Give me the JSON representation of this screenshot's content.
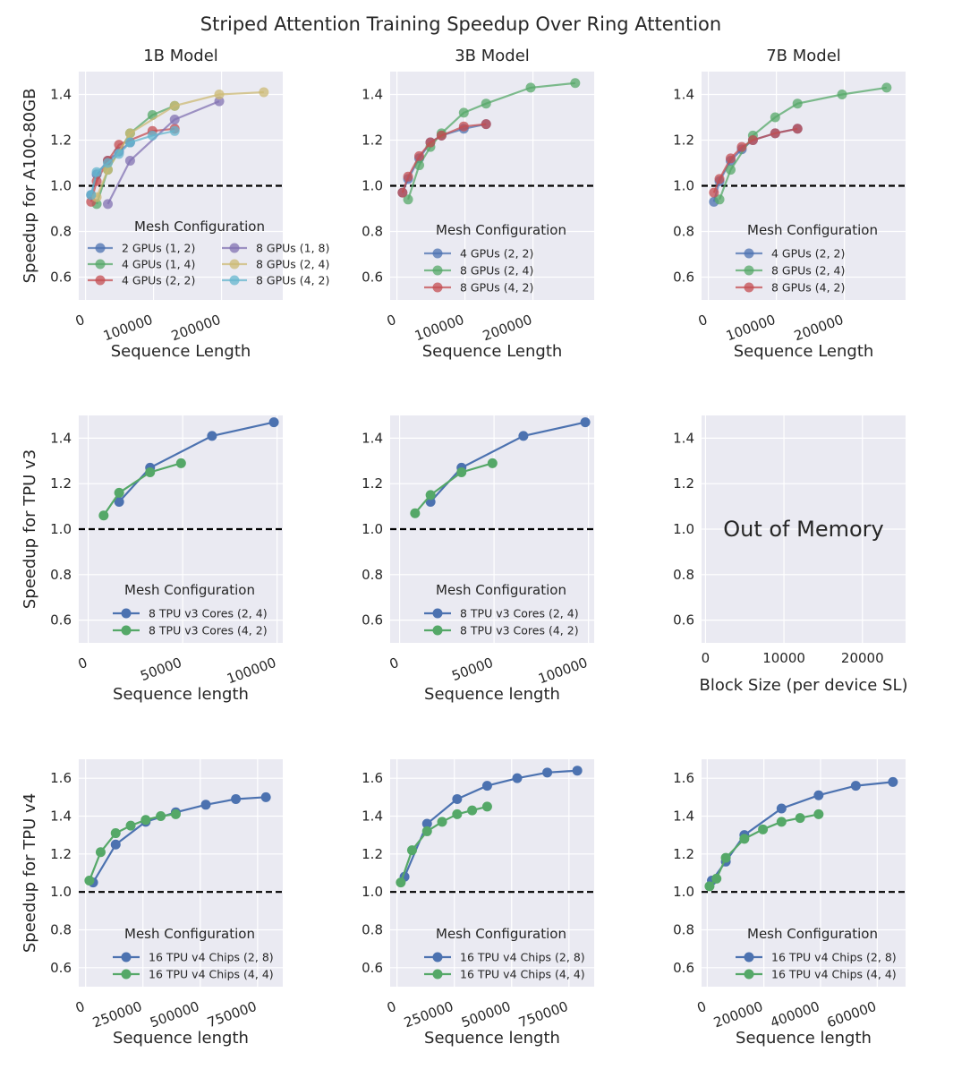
{
  "figure_title": "Striped Attention Training Speedup Over Ring Attention",
  "colors": {
    "blue": "#4c72b0",
    "green": "#55a868",
    "red": "#c44e52",
    "purple": "#8172b2",
    "gold": "#ccb974",
    "cyan": "#64b5cd",
    "baseline": "#000000",
    "background": "#eaeaf2"
  },
  "chart_data": [
    {
      "id": "1b-a100",
      "type": "line",
      "title": "1B Model",
      "ylabel": "Speedup for A100-80GB",
      "xlabel": "Sequence Length",
      "xlim": [
        -10000,
        290000
      ],
      "ylim": [
        0.5,
        1.5
      ],
      "xticks": [
        0,
        100000,
        200000
      ],
      "xtick_labels": [
        "0",
        "100000",
        "200000"
      ],
      "yticks": [
        0.6,
        0.8,
        1.0,
        1.2,
        1.4
      ],
      "ytick_labels": [
        "0.6",
        "0.8",
        "1.0",
        "1.2",
        "1.4"
      ],
      "baseline": 1.0,
      "alpha": 0.75,
      "legend": {
        "title": "Mesh Configuration",
        "position": "lower-right",
        "columns": 2
      },
      "series": [
        {
          "name": "2 GPUs (1, 2)",
          "color": "blue",
          "x": [
            8192,
            16384,
            32768,
            49152,
            65536
          ],
          "y": [
            0.96,
            1.05,
            1.11,
            1.15,
            1.19
          ]
        },
        {
          "name": "4 GPUs (1, 4)",
          "color": "green",
          "x": [
            16384,
            32768,
            65536,
            98304,
            131072
          ],
          "y": [
            0.92,
            1.07,
            1.23,
            1.31,
            1.35
          ]
        },
        {
          "name": "4 GPUs (2, 2)",
          "color": "red",
          "x": [
            8192,
            16384,
            32768,
            49152,
            98304,
            131072
          ],
          "y": [
            0.93,
            1.02,
            1.11,
            1.18,
            1.24,
            1.25
          ]
        },
        {
          "name": "8 GPUs (1, 8)",
          "color": "purple",
          "x": [
            32768,
            65536,
            131072,
            196608
          ],
          "y": [
            0.92,
            1.11,
            1.29,
            1.37
          ]
        },
        {
          "name": "8 GPUs (2, 4)",
          "color": "gold",
          "x": [
            16384,
            32768,
            65536,
            131072,
            196608,
            262144
          ],
          "y": [
            0.95,
            1.07,
            1.23,
            1.35,
            1.4,
            1.41
          ]
        },
        {
          "name": "8 GPUs (4, 2)",
          "color": "cyan",
          "x": [
            8192,
            16384,
            32768,
            49152,
            65536,
            98304,
            131072
          ],
          "y": [
            0.96,
            1.06,
            1.1,
            1.14,
            1.19,
            1.22,
            1.24
          ]
        }
      ]
    },
    {
      "id": "3b-a100",
      "type": "line",
      "title": "3B Model",
      "ylabel": "",
      "xlabel": "Sequence Length",
      "xlim": [
        -10000,
        290000
      ],
      "ylim": [
        0.5,
        1.5
      ],
      "xticks": [
        0,
        100000,
        200000
      ],
      "xtick_labels": [
        "0",
        "100000",
        "200000"
      ],
      "yticks": [
        0.6,
        0.8,
        1.0,
        1.2,
        1.4
      ],
      "ytick_labels": [
        "0.6",
        "0.8",
        "1.0",
        "1.2",
        "1.4"
      ],
      "baseline": 1.0,
      "alpha": 0.75,
      "legend": {
        "title": "Mesh Configuration",
        "position": "lower-right",
        "columns": 1
      },
      "series": [
        {
          "name": "4 GPUs (2, 2)",
          "color": "blue",
          "x": [
            8192,
            16384,
            32768,
            49152,
            65536,
            98304,
            131072
          ],
          "y": [
            0.97,
            1.03,
            1.12,
            1.19,
            1.22,
            1.25,
            1.27
          ]
        },
        {
          "name": "8 GPUs (2, 4)",
          "color": "green",
          "x": [
            16384,
            32768,
            49152,
            65536,
            98304,
            131072,
            196608,
            262144
          ],
          "y": [
            0.94,
            1.09,
            1.17,
            1.23,
            1.32,
            1.36,
            1.43,
            1.45
          ]
        },
        {
          "name": "8 GPUs (4, 2)",
          "color": "red",
          "x": [
            8192,
            16384,
            32768,
            49152,
            65536,
            98304,
            131072
          ],
          "y": [
            0.97,
            1.04,
            1.13,
            1.19,
            1.22,
            1.26,
            1.27
          ]
        }
      ]
    },
    {
      "id": "7b-a100",
      "type": "line",
      "title": "7B Model",
      "ylabel": "",
      "xlabel": "Sequence Length",
      "xlim": [
        -10000,
        290000
      ],
      "ylim": [
        0.5,
        1.5
      ],
      "xticks": [
        0,
        100000,
        200000
      ],
      "xtick_labels": [
        "0",
        "100000",
        "200000"
      ],
      "yticks": [
        0.6,
        0.8,
        1.0,
        1.2,
        1.4
      ],
      "ytick_labels": [
        "0.6",
        "0.8",
        "1.0",
        "1.2",
        "1.4"
      ],
      "baseline": 1.0,
      "alpha": 0.75,
      "legend": {
        "title": "Mesh Configuration",
        "position": "lower-right",
        "columns": 1
      },
      "series": [
        {
          "name": "4 GPUs (2, 2)",
          "color": "blue",
          "x": [
            8192,
            16384,
            32768,
            49152,
            65536,
            98304,
            131072
          ],
          "y": [
            0.93,
            1.02,
            1.11,
            1.16,
            1.2,
            1.23,
            1.25
          ]
        },
        {
          "name": "8 GPUs (2, 4)",
          "color": "green",
          "x": [
            16384,
            32768,
            65536,
            98304,
            131072,
            196608,
            262144
          ],
          "y": [
            0.94,
            1.07,
            1.22,
            1.3,
            1.36,
            1.4,
            1.43
          ]
        },
        {
          "name": "8 GPUs (4, 2)",
          "color": "red",
          "x": [
            8192,
            16384,
            32768,
            49152,
            65536,
            98304,
            131072
          ],
          "y": [
            0.97,
            1.03,
            1.12,
            1.17,
            1.2,
            1.23,
            1.25
          ]
        }
      ]
    },
    {
      "id": "1b-tpuv3",
      "type": "line",
      "title": "",
      "ylabel": "Speedup for TPU v3",
      "xlabel": "Sequence length",
      "xlim": [
        -5000,
        103000
      ],
      "ylim": [
        0.5,
        1.5
      ],
      "xticks": [
        0,
        50000,
        100000
      ],
      "xtick_labels": [
        "0",
        "50000",
        "100000"
      ],
      "yticks": [
        0.6,
        0.8,
        1.0,
        1.2,
        1.4
      ],
      "ytick_labels": [
        "0.6",
        "0.8",
        "1.0",
        "1.2",
        "1.4"
      ],
      "baseline": 1.0,
      "alpha": 1,
      "legend": {
        "title": "Mesh Configuration",
        "position": "lower-right",
        "columns": 1
      },
      "series": [
        {
          "name": "8 TPU v3 Cores (2, 4)",
          "color": "blue",
          "x": [
            16384,
            32768,
            65536,
            98304
          ],
          "y": [
            1.12,
            1.27,
            1.41,
            1.47
          ]
        },
        {
          "name": "8 TPU v3 Cores (4, 2)",
          "color": "green",
          "x": [
            8192,
            16384,
            32768,
            49152
          ],
          "y": [
            1.06,
            1.16,
            1.25,
            1.29
          ]
        }
      ]
    },
    {
      "id": "3b-tpuv3",
      "type": "line",
      "title": "",
      "ylabel": "",
      "xlabel": "Sequence length",
      "xlim": [
        -5000,
        103000
      ],
      "ylim": [
        0.5,
        1.5
      ],
      "xticks": [
        0,
        50000,
        100000
      ],
      "xtick_labels": [
        "0",
        "50000",
        "100000"
      ],
      "yticks": [
        0.6,
        0.8,
        1.0,
        1.2,
        1.4
      ],
      "ytick_labels": [
        "0.6",
        "0.8",
        "1.0",
        "1.2",
        "1.4"
      ],
      "baseline": 1.0,
      "alpha": 1,
      "legend": {
        "title": "Mesh Configuration",
        "position": "lower-right",
        "columns": 1
      },
      "series": [
        {
          "name": "8 TPU v3 Cores (2, 4)",
          "color": "blue",
          "x": [
            16384,
            32768,
            65536,
            98304
          ],
          "y": [
            1.12,
            1.27,
            1.41,
            1.47
          ]
        },
        {
          "name": "8 TPU v3 Cores (4, 2)",
          "color": "green",
          "x": [
            8192,
            16384,
            32768,
            49152
          ],
          "y": [
            1.07,
            1.15,
            1.25,
            1.29
          ]
        }
      ]
    },
    {
      "id": "7b-tpuv3",
      "type": "line",
      "title": "",
      "ylabel": "",
      "xlabel": "Block Size (per device SL)",
      "xlim": [
        -500,
        25500
      ],
      "ylim": [
        0.5,
        1.5
      ],
      "xticks": [
        0,
        10000,
        20000
      ],
      "xtick_labels": [
        "0",
        "10000",
        "20000"
      ],
      "yticks": [
        0.6,
        0.8,
        1.0,
        1.2,
        1.4
      ],
      "ytick_labels": [
        "0.6",
        "0.8",
        "1.0",
        "1.2",
        "1.4"
      ],
      "baseline": null,
      "alpha": 1,
      "annotation": "Out of Memory",
      "series": []
    },
    {
      "id": "1b-tpuv4",
      "type": "line",
      "title": "",
      "ylabel": "Speedup for TPU v4",
      "xlabel": "Sequence length",
      "xlim": [
        -30000,
        860000
      ],
      "ylim": [
        0.5,
        1.7
      ],
      "xticks": [
        0,
        250000,
        500000,
        750000
      ],
      "xtick_labels": [
        "0",
        "250000",
        "500000",
        "750000"
      ],
      "yticks": [
        0.6,
        0.8,
        1.0,
        1.2,
        1.4,
        1.6
      ],
      "ytick_labels": [
        "0.6",
        "0.8",
        "1.0",
        "1.2",
        "1.4",
        "1.6"
      ],
      "baseline": 1.0,
      "alpha": 1,
      "legend": {
        "title": "Mesh Configuration",
        "position": "lower-right",
        "columns": 1
      },
      "series": [
        {
          "name": "16 TPU v4 Chips (2, 8)",
          "color": "blue",
          "x": [
            32768,
            131072,
            262144,
            393216,
            524288,
            655360,
            786432
          ],
          "y": [
            1.05,
            1.25,
            1.37,
            1.42,
            1.46,
            1.49,
            1.5
          ]
        },
        {
          "name": "16 TPU v4 Chips (4, 4)",
          "color": "green",
          "x": [
            16384,
            65536,
            131072,
            196608,
            262144,
            327680,
            393216
          ],
          "y": [
            1.06,
            1.21,
            1.31,
            1.35,
            1.38,
            1.4,
            1.41
          ]
        }
      ]
    },
    {
      "id": "3b-tpuv4",
      "type": "line",
      "title": "",
      "ylabel": "",
      "xlabel": "Sequence length",
      "xlim": [
        -30000,
        860000
      ],
      "ylim": [
        0.5,
        1.7
      ],
      "xticks": [
        0,
        250000,
        500000,
        750000
      ],
      "xtick_labels": [
        "0",
        "250000",
        "500000",
        "750000"
      ],
      "yticks": [
        0.6,
        0.8,
        1.0,
        1.2,
        1.4,
        1.6
      ],
      "ytick_labels": [
        "0.6",
        "0.8",
        "1.0",
        "1.2",
        "1.4",
        "1.6"
      ],
      "baseline": 1.0,
      "alpha": 1,
      "legend": {
        "title": "Mesh Configuration",
        "position": "lower-right",
        "columns": 1
      },
      "series": [
        {
          "name": "16 TPU v4 Chips (2, 8)",
          "color": "blue",
          "x": [
            32768,
            131072,
            262144,
            393216,
            524288,
            655360,
            786432
          ],
          "y": [
            1.08,
            1.36,
            1.49,
            1.56,
            1.6,
            1.63,
            1.64
          ]
        },
        {
          "name": "16 TPU v4 Chips (4, 4)",
          "color": "green",
          "x": [
            16384,
            65536,
            131072,
            196608,
            262144,
            327680,
            393216
          ],
          "y": [
            1.05,
            1.22,
            1.32,
            1.37,
            1.41,
            1.43,
            1.45
          ]
        }
      ]
    },
    {
      "id": "7b-tpuv4",
      "type": "line",
      "title": "",
      "ylabel": "",
      "xlabel": "Sequence length",
      "xlim": [
        -20000,
        700000
      ],
      "ylim": [
        0.5,
        1.7
      ],
      "xticks": [
        0,
        200000,
        400000,
        600000
      ],
      "xtick_labels": [
        "0",
        "200000",
        "400000",
        "600000"
      ],
      "yticks": [
        0.6,
        0.8,
        1.0,
        1.2,
        1.4,
        1.6
      ],
      "ytick_labels": [
        "0.6",
        "0.8",
        "1.0",
        "1.2",
        "1.4",
        "1.6"
      ],
      "baseline": 1.0,
      "alpha": 1,
      "legend": {
        "title": "Mesh Configuration",
        "position": "lower-right",
        "columns": 1
      },
      "series": [
        {
          "name": "16 TPU v4 Chips (2, 8)",
          "color": "blue",
          "x": [
            16384,
            65536,
            131072,
            262144,
            393216,
            524288,
            655360
          ],
          "y": [
            1.06,
            1.16,
            1.3,
            1.44,
            1.51,
            1.56,
            1.58
          ]
        },
        {
          "name": "16 TPU v4 Chips (4, 4)",
          "color": "green",
          "x": [
            8192,
            32768,
            65536,
            131072,
            196608,
            262144,
            327680,
            393216
          ],
          "y": [
            1.03,
            1.07,
            1.18,
            1.28,
            1.33,
            1.37,
            1.39,
            1.41
          ]
        }
      ]
    }
  ]
}
